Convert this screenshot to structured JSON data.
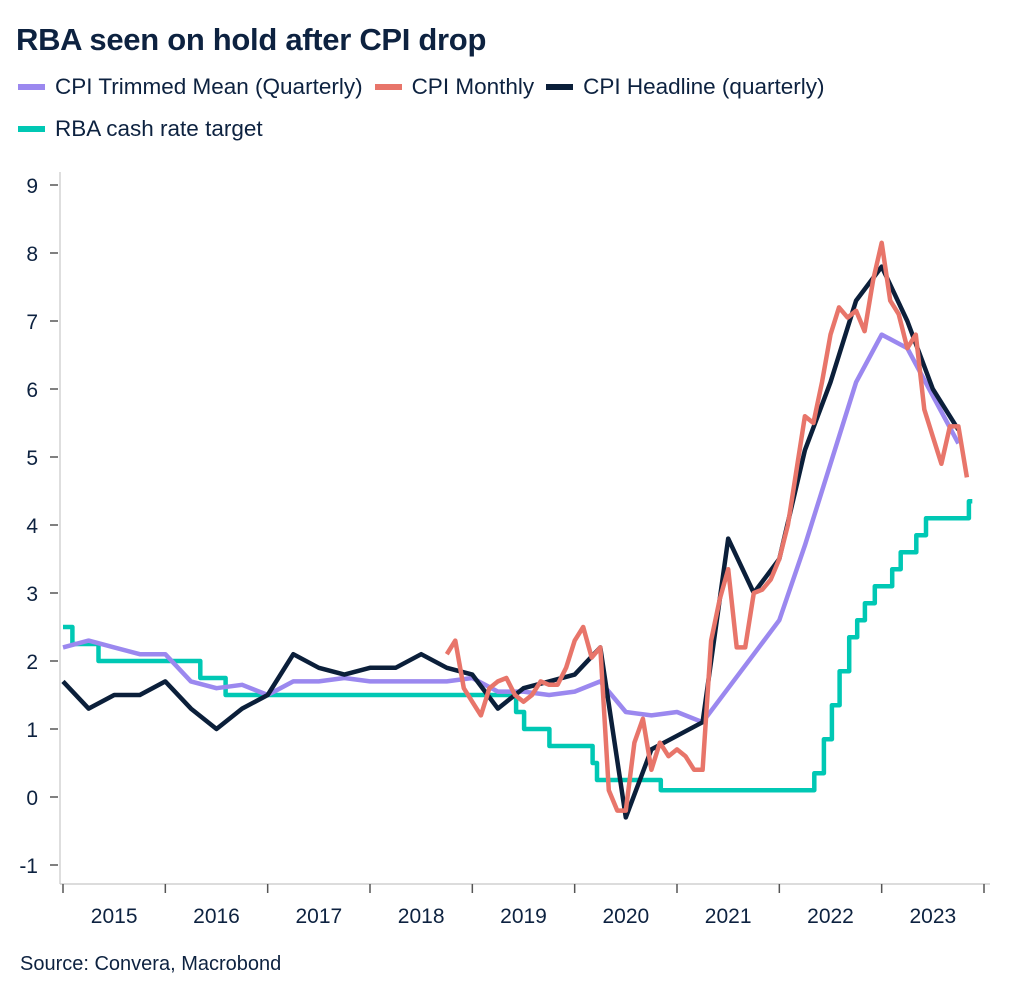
{
  "chart_data": {
    "type": "line",
    "title": "RBA seen on hold after CPI drop",
    "xlabel": "",
    "ylabel": "",
    "xlim": [
      2015,
      2024
    ],
    "ylim": [
      -1,
      9
    ],
    "y_ticks": [
      "-1",
      "0",
      "1",
      "2",
      "3",
      "4",
      "5",
      "6",
      "7",
      "8",
      "9"
    ],
    "x_tick_labels": [
      "2015",
      "2016",
      "2017",
      "2018",
      "2019",
      "2020",
      "2021",
      "2022",
      "2023"
    ],
    "grid": false,
    "legend_position": "top",
    "source": "Source: Convera, Macrobond",
    "series": [
      {
        "name": "CPI Trimmed Mean (Quarterly)",
        "color": "#9b88ef",
        "x": [
          "2014-12",
          "2015-03",
          "2015-06",
          "2015-09",
          "2015-12",
          "2016-03",
          "2016-06",
          "2016-09",
          "2016-12",
          "2017-03",
          "2017-06",
          "2017-09",
          "2017-12",
          "2018-03",
          "2018-06",
          "2018-09",
          "2018-12",
          "2019-03",
          "2019-06",
          "2019-09",
          "2019-12",
          "2020-03",
          "2020-06",
          "2020-09",
          "2020-12",
          "2021-03",
          "2021-06",
          "2021-09",
          "2021-12",
          "2022-03",
          "2022-06",
          "2022-09",
          "2022-12",
          "2023-03",
          "2023-06",
          "2023-09"
        ],
        "values": [
          2.2,
          2.3,
          2.2,
          2.1,
          2.1,
          1.7,
          1.6,
          1.65,
          1.5,
          1.7,
          1.7,
          1.75,
          1.7,
          1.7,
          1.7,
          1.7,
          1.75,
          1.55,
          1.55,
          1.5,
          1.55,
          1.7,
          1.25,
          1.2,
          1.25,
          1.1,
          1.6,
          2.1,
          2.6,
          3.7,
          4.9,
          6.1,
          6.8,
          6.6,
          5.9,
          5.2
        ]
      },
      {
        "name": "CPI Monthly",
        "color": "#e8756a",
        "x": [
          "2018-09",
          "2018-10",
          "2018-11",
          "2018-12",
          "2019-01",
          "2019-02",
          "2019-03",
          "2019-04",
          "2019-05",
          "2019-06",
          "2019-07",
          "2019-08",
          "2019-09",
          "2019-10",
          "2019-11",
          "2019-12",
          "2020-01",
          "2020-02",
          "2020-03",
          "2020-04",
          "2020-05",
          "2020-06",
          "2020-07",
          "2020-08",
          "2020-09",
          "2020-10",
          "2020-11",
          "2020-12",
          "2021-01",
          "2021-02",
          "2021-03",
          "2021-04",
          "2021-05",
          "2021-06",
          "2021-07",
          "2021-08",
          "2021-09",
          "2021-10",
          "2021-11",
          "2021-12",
          "2022-01",
          "2022-02",
          "2022-03",
          "2022-04",
          "2022-05",
          "2022-06",
          "2022-07",
          "2022-08",
          "2022-09",
          "2022-10",
          "2022-11",
          "2022-12",
          "2023-01",
          "2023-02",
          "2023-03",
          "2023-04",
          "2023-05",
          "2023-06",
          "2023-07",
          "2023-08",
          "2023-09",
          "2023-10"
        ],
        "values": [
          2.1,
          2.3,
          1.6,
          1.4,
          1.2,
          1.6,
          1.7,
          1.75,
          1.5,
          1.4,
          1.5,
          1.7,
          1.65,
          1.65,
          1.9,
          2.3,
          2.5,
          2.05,
          2.2,
          0.1,
          -0.2,
          -0.2,
          0.8,
          1.15,
          0.4,
          0.8,
          0.6,
          0.7,
          0.6,
          0.4,
          0.4,
          2.3,
          2.9,
          3.35,
          2.2,
          2.2,
          3.0,
          3.05,
          3.2,
          3.5,
          4.0,
          4.8,
          5.6,
          5.5,
          6.1,
          6.8,
          7.2,
          7.05,
          7.15,
          6.85,
          7.6,
          8.15,
          7.3,
          7.1,
          6.6,
          6.8,
          5.7,
          5.3,
          4.9,
          5.45,
          5.45,
          4.7
        ]
      },
      {
        "name": "CPI Headline (quarterly)",
        "color": "#0b1f3a",
        "x": [
          "2014-12",
          "2015-03",
          "2015-06",
          "2015-09",
          "2015-12",
          "2016-03",
          "2016-06",
          "2016-09",
          "2016-12",
          "2017-03",
          "2017-06",
          "2017-09",
          "2017-12",
          "2018-03",
          "2018-06",
          "2018-09",
          "2018-12",
          "2019-03",
          "2019-06",
          "2019-09",
          "2019-12",
          "2020-03",
          "2020-06",
          "2020-09",
          "2020-12",
          "2021-03",
          "2021-06",
          "2021-09",
          "2021-12",
          "2022-03",
          "2022-06",
          "2022-09",
          "2022-12",
          "2023-03",
          "2023-06",
          "2023-09"
        ],
        "values": [
          1.7,
          1.3,
          1.5,
          1.5,
          1.7,
          1.3,
          1.0,
          1.3,
          1.5,
          2.1,
          1.9,
          1.8,
          1.9,
          1.9,
          2.1,
          1.9,
          1.8,
          1.3,
          1.6,
          1.7,
          1.8,
          2.2,
          -0.3,
          0.7,
          0.9,
          1.1,
          3.8,
          3.0,
          3.5,
          5.1,
          6.1,
          7.3,
          7.8,
          7.0,
          6.0,
          5.4
        ]
      },
      {
        "name": "RBA cash rate target",
        "color": "#00c8b4",
        "step": true,
        "x": [
          "2015-01-01",
          "2015-02-04",
          "2015-05-06",
          "2016-05-04",
          "2016-08-03",
          "2019-06-05",
          "2019-07-03",
          "2019-10-02",
          "2020-03-04",
          "2020-03-20",
          "2020-11-04",
          "2022-05-04",
          "2022-06-08",
          "2022-07-06",
          "2022-08-03",
          "2022-09-07",
          "2022-10-05",
          "2022-11-02",
          "2022-12-07",
          "2023-02-08",
          "2023-03-08",
          "2023-05-03",
          "2023-06-07",
          "2023-11-08",
          "2023-11-20"
        ],
        "values": [
          2.5,
          2.25,
          2.0,
          1.75,
          1.5,
          1.25,
          1.0,
          0.75,
          0.5,
          0.25,
          0.1,
          0.35,
          0.85,
          1.35,
          1.85,
          2.35,
          2.6,
          2.85,
          3.1,
          3.35,
          3.6,
          3.85,
          4.1,
          4.35,
          4.35
        ]
      }
    ]
  }
}
